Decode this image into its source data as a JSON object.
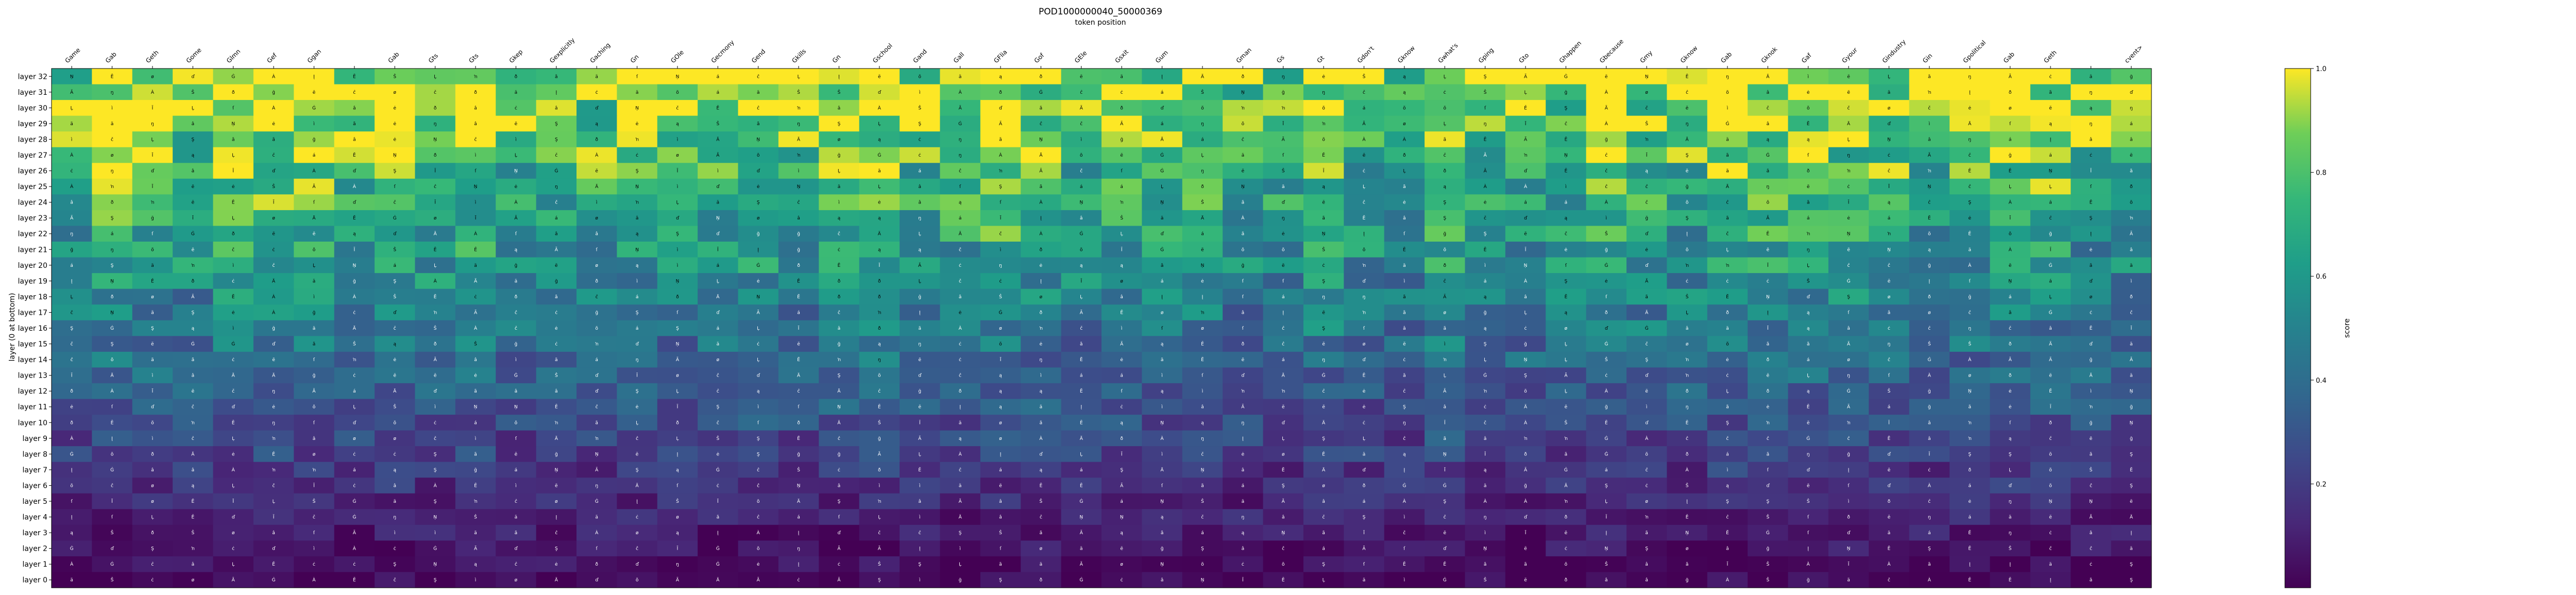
{
  "chart_data": {
    "type": "heatmap",
    "title": "POD1000000040_50000369",
    "subtitle": "token position",
    "ylabel": "layer (0 at bottom)",
    "colorbar_label": "score",
    "colorbar_ticks": [
      "0.2",
      "0.4",
      "0.6",
      "0.8",
      "1.0"
    ],
    "colorbar_range": [
      0.0,
      1.0
    ],
    "colormap": "viridis",
    "x_tick_labels": [
      "Game",
      "Gab",
      "Geth",
      "Gome",
      "Glmn",
      "Gef",
      "Ggan",
      "",
      "Gab",
      "Gts",
      "Gts",
      "Gkep",
      "Gexplicitly",
      "Gaching",
      "Gn",
      "GOle",
      "Gecmony",
      "Gend",
      "Gkills",
      "Gn",
      "Gschool",
      "Gand",
      "Gall",
      "GFlia",
      "Gof",
      "GEle",
      "Gsxit",
      "Gum",
      "",
      "Gman",
      "Gs",
      "Gt",
      "Gdon't",
      "Gknow",
      "Gwhat's",
      "Gping",
      "Gto",
      "Ghappen",
      "Gbecause",
      "Gmy",
      "Gknow",
      "Gab",
      "Gknok",
      "Gaf",
      "Gyour",
      "Gindustry",
      "Gin",
      "Gpolitical",
      "Gab",
      "Geth",
      "",
      "cvent>"
    ],
    "y_tick_labels": [
      "layer 32",
      "layer 31",
      "layer 30",
      "layer 29",
      "layer 28",
      "layer 27",
      "layer 26",
      "layer 25",
      "layer 24",
      "layer 23",
      "layer 22",
      "layer 21",
      "layer 20",
      "layer 19",
      "layer 18",
      "layer 17",
      "layer 16",
      "layer 15",
      "layer 14",
      "layer 13",
      "layer 12",
      "layer 11",
      "layer 10",
      "layer 9",
      "layer 8",
      "layer 7",
      "layer 6",
      "layer 5",
      "layer 4",
      "layer 3",
      "layer 2",
      "layer 1",
      "layer 0"
    ],
    "cell_symbols": [
      "ſ",
      "Ġ",
      "ĉ",
      "À",
      "Ã",
      "â",
      "ì",
      "ċ",
      "Ä",
      "Ĕ",
      "ð",
      "Ş",
      "Ŝ",
      "ŋ",
      "ŉ",
      "ď",
      "Ī",
      "Ņ",
      "Ļ",
      "Į",
      "ğ",
      "á",
      "ø",
      "õ",
      "č",
      "ą",
      "ä",
      "ė",
      "ë",
      "ã"
    ],
    "grid": false,
    "legend": "colorbar-right"
  }
}
